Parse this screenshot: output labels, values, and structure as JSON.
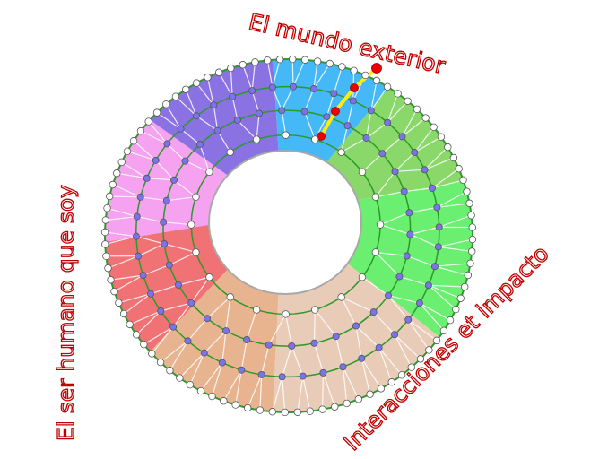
{
  "labels": {
    "top": "El mundo exterior",
    "left": "El ser humano que soy",
    "right": "Interacciones et impacto"
  },
  "colors": {
    "ring_line": "#2a9a2a",
    "path_highlight": "#ffee00",
    "path_nodes": "#ee0000",
    "inner_nodes": "#7b72ee",
    "edge_nodes": "#ffffff",
    "label_outline": "#c00000"
  },
  "sectors": [
    {
      "name": "blue",
      "color": "#45b8f8"
    },
    {
      "name": "light-green",
      "color": "#8ad86a"
    },
    {
      "name": "bright-green",
      "color": "#6aef70"
    },
    {
      "name": "light-tan",
      "color": "#e8ccb8"
    },
    {
      "name": "dark-tan",
      "color": "#e8b490"
    },
    {
      "name": "red",
      "color": "#f07275"
    },
    {
      "name": "pink",
      "color": "#f5a2f0"
    },
    {
      "name": "purple",
      "color": "#8a72e2"
    }
  ]
}
